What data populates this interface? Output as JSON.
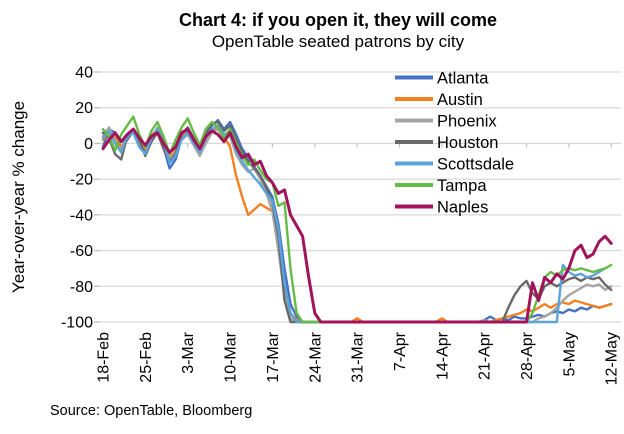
{
  "source": "Source: OpenTable, Bloomberg",
  "colors": {
    "title": "#AE1A70",
    "subtitle": "#AE1A70",
    "grid": "#D9D9D9",
    "tick": "#BFBFBF",
    "axis_text": "#000000",
    "background": "#FFFFFF"
  },
  "chart_data": {
    "type": "line",
    "title": "Chart 4: if you open it, they will come",
    "subtitle": "OpenTable seated patrons by city",
    "ylabel": "Year-over-year % change",
    "ylim": [
      -100,
      40
    ],
    "y_ticks": [
      40,
      20,
      0,
      -20,
      -40,
      -60,
      -80,
      -100
    ],
    "y_tick_labels": [
      "40",
      "20",
      "0",
      "-20",
      "-40",
      "-60",
      "-80",
      "-100"
    ],
    "x_tick_labels": [
      "18-Feb",
      "25-Feb",
      "3-Mar",
      "10-Mar",
      "17-Mar",
      "24-Mar",
      "31-Mar",
      "7-Apr",
      "14-Apr",
      "21-Apr",
      "28-Apr",
      "5-May",
      "12-May"
    ],
    "x_tick_day_index": [
      0,
      7,
      14,
      21,
      28,
      35,
      42,
      49,
      56,
      63,
      70,
      77,
      84
    ],
    "frequency": "daily, day 0 = 18-Feb through day 84 = 12-May",
    "grid": true,
    "legend_position": "top-right inside plot",
    "series": [
      {
        "name": "Atlanta",
        "color": "#4472C4",
        "values": [
          -2,
          8,
          6,
          -3,
          2,
          7,
          1,
          -5,
          4,
          8,
          -2,
          -14,
          -9,
          3,
          7,
          1,
          -4,
          5,
          10,
          13,
          8,
          12,
          5,
          -3,
          -8,
          -13,
          -18,
          -24,
          -30,
          -45,
          -70,
          -90,
          -97,
          -100,
          -100,
          -100,
          -100,
          -100,
          -100,
          -100,
          -100,
          -100,
          -100,
          -100,
          -100,
          -100,
          -100,
          -100,
          -100,
          -100,
          -100,
          -100,
          -100,
          -100,
          -100,
          -100,
          -100,
          -100,
          -100,
          -100,
          -100,
          -100,
          -100,
          -99,
          -97,
          -99,
          -98,
          -99,
          -97,
          -98,
          -98,
          -97,
          -96,
          -97,
          -95,
          -94,
          -95,
          -93,
          -94,
          -92,
          -93,
          -91,
          -92,
          -91,
          -90
        ]
      },
      {
        "name": "Austin",
        "color": "#F28022",
        "values": [
          2,
          6,
          4,
          -2,
          3,
          8,
          2,
          -3,
          5,
          7,
          0,
          -8,
          -4,
          4,
          6,
          0,
          -6,
          2,
          7,
          9,
          4,
          -2,
          -18,
          -30,
          -40,
          -37,
          -34,
          -36,
          -38,
          -55,
          -80,
          -95,
          -99,
          -100,
          -100,
          -100,
          -100,
          -100,
          -100,
          -100,
          -100,
          -100,
          -98,
          -100,
          -100,
          -100,
          -100,
          -100,
          -100,
          -100,
          -100,
          -100,
          -100,
          -100,
          -100,
          -100,
          -98,
          -100,
          -100,
          -100,
          -100,
          -100,
          -100,
          -100,
          -100,
          -99,
          -98,
          -97,
          -96,
          -95,
          -93,
          -94,
          -92,
          -90,
          -92,
          -90,
          -89,
          -90,
          -88,
          -89,
          -90,
          -91,
          -92,
          -91,
          -90
        ]
      },
      {
        "name": "Phoenix",
        "color": "#A6A6A6",
        "values": [
          4,
          9,
          1,
          -4,
          5,
          6,
          -1,
          -6,
          2,
          9,
          3,
          -9,
          -5,
          2,
          5,
          -1,
          -7,
          0,
          6,
          8,
          3,
          4,
          -6,
          -12,
          -16,
          -14,
          -20,
          -28,
          -38,
          -60,
          -85,
          -98,
          -100,
          -100,
          -100,
          -100,
          -100,
          -100,
          -100,
          -100,
          -100,
          -100,
          -100,
          -100,
          -100,
          -100,
          -100,
          -100,
          -100,
          -100,
          -100,
          -100,
          -100,
          -100,
          -100,
          -100,
          -100,
          -100,
          -100,
          -100,
          -100,
          -100,
          -100,
          -99,
          -100,
          -100,
          -100,
          -100,
          -100,
          -100,
          -100,
          -100,
          -98,
          -97,
          -95,
          -92,
          -88,
          -85,
          -83,
          -81,
          -79,
          -80,
          -79,
          -82,
          -80
        ]
      },
      {
        "name": "Houston",
        "color": "#696969",
        "values": [
          6,
          3,
          -6,
          -9,
          4,
          8,
          2,
          -7,
          1,
          6,
          -3,
          -10,
          -6,
          5,
          9,
          3,
          -2,
          6,
          11,
          12,
          7,
          10,
          2,
          -5,
          -10,
          -14,
          -18,
          -25,
          -33,
          -52,
          -88,
          -100,
          -100,
          -100,
          -100,
          -100,
          -100,
          -100,
          -100,
          -100,
          -100,
          -100,
          -100,
          -100,
          -100,
          -100,
          -100,
          -100,
          -100,
          -100,
          -100,
          -100,
          -100,
          -100,
          -100,
          -100,
          -100,
          -100,
          -100,
          -100,
          -100,
          -100,
          -100,
          -100,
          -100,
          -100,
          -100,
          -92,
          -85,
          -80,
          -77,
          -84,
          -87,
          -80,
          -78,
          -80,
          -78,
          -76,
          -75,
          -77,
          -75,
          -76,
          -75,
          -79,
          -82
        ]
      },
      {
        "name": "Scottsdale",
        "color": "#5BA3DB",
        "values": [
          3,
          7,
          0,
          -5,
          4,
          6,
          -2,
          -6,
          3,
          8,
          1,
          -11,
          -7,
          2,
          6,
          0,
          -5,
          3,
          8,
          10,
          5,
          7,
          -4,
          -10,
          -15,
          -19,
          -23,
          -28,
          -32,
          -48,
          -78,
          -95,
          -100,
          -100,
          -100,
          -100,
          -100,
          -100,
          -100,
          -100,
          -100,
          -100,
          -100,
          -100,
          -100,
          -100,
          -100,
          -100,
          -100,
          -100,
          -100,
          -100,
          -100,
          -100,
          -100,
          -100,
          -100,
          -100,
          -100,
          -100,
          -100,
          -100,
          -100,
          -100,
          -100,
          -100,
          -100,
          -100,
          -100,
          -100,
          -100,
          -100,
          -100,
          -100,
          -100,
          -100,
          -68,
          -72,
          -74,
          -73,
          -75,
          -74,
          -72,
          -70
        ]
      },
      {
        "name": "Tampa",
        "color": "#66BB46",
        "values": [
          8,
          4,
          -4,
          5,
          10,
          15,
          5,
          -2,
          7,
          12,
          4,
          -6,
          2,
          9,
          14,
          6,
          -1,
          8,
          12,
          9,
          3,
          8,
          0,
          -7,
          -12,
          -9,
          -15,
          -20,
          -22,
          -35,
          -33,
          -70,
          -95,
          -100,
          -100,
          -100,
          -100,
          -100,
          -100,
          -100,
          -100,
          -100,
          -100,
          -100,
          -100,
          -100,
          -100,
          -100,
          -100,
          -100,
          -100,
          -100,
          -100,
          -100,
          -100,
          -100,
          -100,
          -100,
          -100,
          -100,
          -100,
          -100,
          -100,
          -100,
          -100,
          -100,
          -100,
          -100,
          -100,
          -100,
          -100,
          -95,
          -85,
          -75,
          -72,
          -74,
          -71,
          -70,
          -71,
          -70,
          -71,
          -72,
          -71,
          -70,
          -68
        ]
      },
      {
        "name": "Naples",
        "color": "#A21459",
        "values": [
          -3,
          2,
          6,
          1,
          5,
          8,
          3,
          -1,
          4,
          6,
          0,
          -5,
          -2,
          6,
          8,
          2,
          -3,
          4,
          7,
          5,
          1,
          6,
          -2,
          -8,
          -6,
          -12,
          -10,
          -18,
          -22,
          -28,
          -26,
          -40,
          -46,
          -52,
          -75,
          -95,
          -100,
          -100,
          -100,
          -100,
          -100,
          -100,
          -100,
          -100,
          -100,
          -100,
          -100,
          -100,
          -100,
          -100,
          -100,
          -100,
          -100,
          -100,
          -100,
          -100,
          -100,
          -100,
          -100,
          -100,
          -100,
          -100,
          -100,
          -100,
          -100,
          -100,
          -100,
          -100,
          -100,
          -100,
          -100,
          -78,
          -88,
          -75,
          -78,
          -73,
          -76,
          -70,
          -60,
          -57,
          -64,
          -62,
          -55,
          -52,
          -56
        ]
      }
    ]
  }
}
